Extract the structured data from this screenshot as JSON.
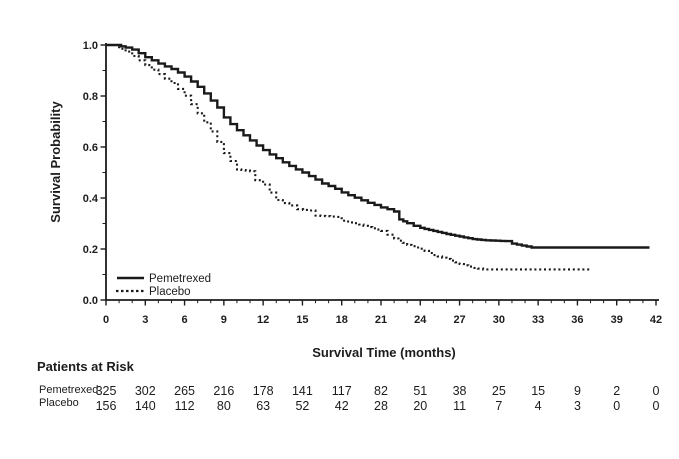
{
  "chart_data": {
    "type": "line",
    "subtype": "kaplan-meier-step",
    "title": "",
    "xlabel": "Survival Time (months)",
    "ylabel": "Survival Probability",
    "xlim": [
      0,
      42
    ],
    "ylim": [
      0.0,
      1.0
    ],
    "grid": false,
    "legend_position": "inside-bottom-left",
    "line_color": "#1a1a1a",
    "x_axis": {
      "tick_values": [
        0,
        3,
        6,
        9,
        12,
        15,
        18,
        21,
        24,
        27,
        30,
        33,
        36,
        39,
        42
      ],
      "tick_labels": [
        "0",
        "3",
        "6",
        "9",
        "12",
        "15",
        "18",
        "21",
        "24",
        "27",
        "30",
        "33",
        "36",
        "39",
        "42"
      ],
      "minor_tick_step": 1
    },
    "y_axis": {
      "tick_values": [
        0.0,
        0.2,
        0.4,
        0.6,
        0.8,
        1.0
      ],
      "tick_labels": [
        "0.0",
        "0.2",
        "0.4",
        "0.6",
        "0.8",
        "1.0"
      ],
      "minor_tick_step": 0.1
    },
    "series": [
      {
        "name": "Pemetrexed",
        "style": "solid",
        "points": [
          [
            0,
            1.0
          ],
          [
            0.8,
            1.0
          ],
          [
            1.5,
            0.99
          ],
          [
            2,
            0.982
          ],
          [
            2.5,
            0.968
          ],
          [
            3,
            0.952
          ],
          [
            3.5,
            0.94
          ],
          [
            4,
            0.927
          ],
          [
            4.5,
            0.916
          ],
          [
            5,
            0.906
          ],
          [
            5.5,
            0.892
          ],
          [
            6,
            0.876
          ],
          [
            6.5,
            0.857
          ],
          [
            7,
            0.836
          ],
          [
            7.5,
            0.81
          ],
          [
            8,
            0.782
          ],
          [
            8.5,
            0.755
          ],
          [
            9,
            0.716
          ],
          [
            9.5,
            0.69
          ],
          [
            10,
            0.666
          ],
          [
            10.5,
            0.646
          ],
          [
            11,
            0.626
          ],
          [
            11.5,
            0.606
          ],
          [
            12,
            0.588
          ],
          [
            12.5,
            0.571
          ],
          [
            13,
            0.556
          ],
          [
            13.5,
            0.54
          ],
          [
            14,
            0.526
          ],
          [
            14.5,
            0.512
          ],
          [
            15,
            0.5
          ],
          [
            15.5,
            0.486
          ],
          [
            16,
            0.472
          ],
          [
            16.5,
            0.457
          ],
          [
            17,
            0.447
          ],
          [
            17.5,
            0.436
          ],
          [
            18,
            0.422
          ],
          [
            18.5,
            0.411
          ],
          [
            19,
            0.401
          ],
          [
            19.5,
            0.391
          ],
          [
            20,
            0.381
          ],
          [
            20.5,
            0.373
          ],
          [
            21,
            0.363
          ],
          [
            21.5,
            0.356
          ],
          [
            22,
            0.347
          ],
          [
            22.4,
            0.316
          ],
          [
            23,
            0.301
          ],
          [
            23.5,
            0.291
          ],
          [
            24,
            0.283
          ],
          [
            25,
            0.271
          ],
          [
            26,
            0.259
          ],
          [
            27,
            0.249
          ],
          [
            28,
            0.239
          ],
          [
            29,
            0.234
          ],
          [
            30.5,
            0.231
          ],
          [
            31,
            0.221
          ],
          [
            32.5,
            0.206
          ],
          [
            41.5,
            0.206
          ]
        ]
      },
      {
        "name": "Placebo",
        "style": "dotted",
        "points": [
          [
            0,
            1.0
          ],
          [
            0.5,
            1.0
          ],
          [
            1,
            0.985
          ],
          [
            1.5,
            0.974
          ],
          [
            2,
            0.957
          ],
          [
            2.5,
            0.94
          ],
          [
            3,
            0.921
          ],
          [
            3.5,
            0.903
          ],
          [
            4,
            0.886
          ],
          [
            4.5,
            0.868
          ],
          [
            5,
            0.851
          ],
          [
            5.5,
            0.828
          ],
          [
            6,
            0.801
          ],
          [
            6.5,
            0.768
          ],
          [
            7,
            0.732
          ],
          [
            7.5,
            0.697
          ],
          [
            8,
            0.661
          ],
          [
            8.5,
            0.62
          ],
          [
            9,
            0.576
          ],
          [
            9.5,
            0.545
          ],
          [
            10,
            0.512
          ],
          [
            11,
            0.505
          ],
          [
            11.4,
            0.47
          ],
          [
            12,
            0.453
          ],
          [
            12.5,
            0.421
          ],
          [
            13,
            0.392
          ],
          [
            13.5,
            0.38
          ],
          [
            14,
            0.371
          ],
          [
            14.6,
            0.356
          ],
          [
            15.5,
            0.351
          ],
          [
            16,
            0.331
          ],
          [
            17.5,
            0.326
          ],
          [
            18,
            0.311
          ],
          [
            19,
            0.301
          ],
          [
            20,
            0.286
          ],
          [
            21,
            0.271
          ],
          [
            21.5,
            0.256
          ],
          [
            22,
            0.241
          ],
          [
            23,
            0.216
          ],
          [
            24,
            0.201
          ],
          [
            25,
            0.176
          ],
          [
            26,
            0.161
          ],
          [
            27,
            0.141
          ],
          [
            28,
            0.126
          ],
          [
            28.8,
            0.12
          ],
          [
            37,
            0.12
          ]
        ]
      }
    ]
  },
  "at_risk": {
    "heading": "Patients at Risk",
    "time_points": [
      0,
      3,
      6,
      9,
      12,
      15,
      18,
      21,
      24,
      27,
      30,
      33,
      36,
      39,
      42
    ],
    "rows": [
      {
        "label": "Pemetrexed",
        "counts": [
          "325",
          "302",
          "265",
          "216",
          "178",
          "141",
          "117",
          "82",
          "51",
          "38",
          "25",
          "15",
          "9",
          "2",
          "0"
        ]
      },
      {
        "label": "Placebo",
        "counts": [
          "156",
          "140",
          "112",
          "80",
          "63",
          "52",
          "42",
          "28",
          "20",
          "11",
          "7",
          "4",
          "3",
          "0",
          "0"
        ]
      }
    ]
  }
}
